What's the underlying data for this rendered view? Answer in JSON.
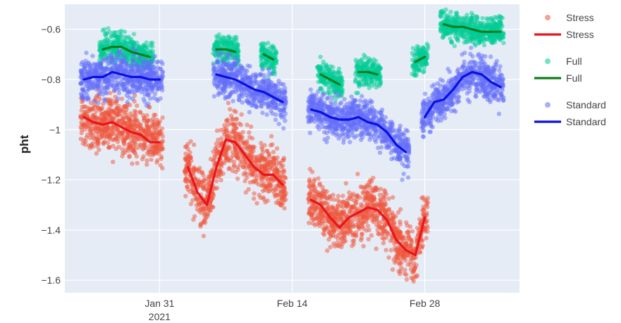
{
  "chart_data": {
    "type": "scatter",
    "title": "",
    "xlabel": "",
    "ylabel": "pht",
    "xlim": [
      "2021-01-21",
      "2021-03-10"
    ],
    "ylim": [
      -1.65,
      -0.5
    ],
    "grid": true,
    "legend_position": "right",
    "plot_background": "#e5ecf6",
    "x_ticks": [
      {
        "value": "2021-01-31",
        "label": "Jan 31",
        "sublabel": "2021"
      },
      {
        "value": "2021-02-14",
        "label": "Feb 14",
        "sublabel": ""
      },
      {
        "value": "2021-02-28",
        "label": "Feb 28",
        "sublabel": ""
      }
    ],
    "y_ticks": [
      {
        "value": -0.6,
        "label": "−0.6"
      },
      {
        "value": -0.8,
        "label": "−0.8"
      },
      {
        "value": -1.0,
        "label": "−1"
      },
      {
        "value": -1.2,
        "label": "−1.2"
      },
      {
        "value": -1.4,
        "label": "−1.4"
      },
      {
        "value": -1.6,
        "label": "−1.6"
      }
    ],
    "series": [
      {
        "name": "Stress",
        "marker_color": "#ef553b",
        "line_color": "#e8141b",
        "scatter_spread": 0.1,
        "trend_segments": [
          [
            [
              "2021-01-23",
              -0.95
            ],
            [
              "2021-01-24",
              -0.97
            ],
            [
              "2021-01-25",
              -0.98
            ],
            [
              "2021-01-26",
              -0.97
            ],
            [
              "2021-01-27",
              -0.99
            ],
            [
              "2021-01-28",
              -1.01
            ],
            [
              "2021-01-29",
              -1.02
            ],
            [
              "2021-01-30",
              -1.05
            ],
            [
              "2021-01-31",
              -1.05
            ]
          ],
          [
            [
              "2021-02-03",
              -1.15
            ],
            [
              "2021-02-04",
              -1.25
            ],
            [
              "2021-02-05",
              -1.3
            ],
            [
              "2021-02-06",
              -1.15
            ],
            [
              "2021-02-07",
              -1.04
            ],
            [
              "2021-02-08",
              -1.05
            ],
            [
              "2021-02-09",
              -1.1
            ],
            [
              "2021-02-10",
              -1.15
            ],
            [
              "2021-02-11",
              -1.18
            ],
            [
              "2021-02-12",
              -1.18
            ],
            [
              "2021-02-13",
              -1.22
            ]
          ],
          [
            [
              "2021-02-16",
              -1.28
            ],
            [
              "2021-02-17",
              -1.3
            ],
            [
              "2021-02-18",
              -1.35
            ],
            [
              "2021-02-19",
              -1.39
            ],
            [
              "2021-02-20",
              -1.35
            ],
            [
              "2021-02-21",
              -1.33
            ],
            [
              "2021-02-22",
              -1.31
            ],
            [
              "2021-02-23",
              -1.32
            ],
            [
              "2021-02-24",
              -1.36
            ],
            [
              "2021-02-25",
              -1.44
            ],
            [
              "2021-02-26",
              -1.48
            ],
            [
              "2021-02-27",
              -1.5
            ],
            [
              "2021-02-28",
              -1.35
            ]
          ]
        ]
      },
      {
        "name": "Full",
        "marker_color": "#00cc96",
        "line_color": "#0e7d19",
        "scatter_spread": 0.05,
        "trend_segments": [
          [
            [
              "2021-01-25",
              -0.68
            ],
            [
              "2021-01-26",
              -0.67
            ],
            [
              "2021-01-27",
              -0.67
            ],
            [
              "2021-01-28",
              -0.69
            ],
            [
              "2021-01-29",
              -0.7
            ],
            [
              "2021-01-30",
              -0.71
            ]
          ],
          [
            [
              "2021-02-06",
              -0.68
            ],
            [
              "2021-02-07",
              -0.68
            ],
            [
              "2021-02-08",
              -0.69
            ]
          ],
          [
            [
              "2021-02-11",
              -0.7
            ],
            [
              "2021-02-12",
              -0.72
            ]
          ],
          [
            [
              "2021-02-17",
              -0.78
            ],
            [
              "2021-02-18",
              -0.8
            ],
            [
              "2021-02-19",
              -0.82
            ]
          ],
          [
            [
              "2021-02-21",
              -0.77
            ],
            [
              "2021-02-22",
              -0.77
            ],
            [
              "2021-02-23",
              -0.78
            ]
          ],
          [
            [
              "2021-02-27",
              -0.73
            ],
            [
              "2021-02-28",
              -0.71
            ]
          ],
          [
            [
              "2021-03-02",
              -0.58
            ],
            [
              "2021-03-03",
              -0.59
            ],
            [
              "2021-03-04",
              -0.59
            ],
            [
              "2021-03-05",
              -0.6
            ],
            [
              "2021-03-06",
              -0.61
            ],
            [
              "2021-03-07",
              -0.61
            ],
            [
              "2021-03-08",
              -0.61
            ]
          ]
        ]
      },
      {
        "name": "Standard",
        "marker_color": "#636efa",
        "line_color": "#0a10de",
        "scatter_spread": 0.07,
        "trend_segments": [
          [
            [
              "2021-01-23",
              -0.8
            ],
            [
              "2021-01-24",
              -0.79
            ],
            [
              "2021-01-25",
              -0.79
            ],
            [
              "2021-01-26",
              -0.77
            ],
            [
              "2021-01-27",
              -0.78
            ],
            [
              "2021-01-28",
              -0.79
            ],
            [
              "2021-01-29",
              -0.79
            ],
            [
              "2021-01-30",
              -0.8
            ],
            [
              "2021-01-31",
              -0.8
            ]
          ],
          [
            [
              "2021-02-06",
              -0.78
            ],
            [
              "2021-02-07",
              -0.79
            ],
            [
              "2021-02-08",
              -0.8
            ],
            [
              "2021-02-09",
              -0.82
            ],
            [
              "2021-02-10",
              -0.84
            ],
            [
              "2021-02-11",
              -0.85
            ],
            [
              "2021-02-12",
              -0.87
            ],
            [
              "2021-02-13",
              -0.89
            ]
          ],
          [
            [
              "2021-02-16",
              -0.92
            ],
            [
              "2021-02-17",
              -0.93
            ],
            [
              "2021-02-18",
              -0.95
            ],
            [
              "2021-02-19",
              -0.96
            ],
            [
              "2021-02-20",
              -0.96
            ],
            [
              "2021-02-21",
              -0.95
            ],
            [
              "2021-02-22",
              -0.97
            ],
            [
              "2021-02-23",
              -0.98
            ],
            [
              "2021-02-24",
              -1.01
            ],
            [
              "2021-02-25",
              -1.06
            ],
            [
              "2021-02-26",
              -1.09
            ]
          ],
          [
            [
              "2021-02-28",
              -0.95
            ],
            [
              "2021-03-01",
              -0.89
            ],
            [
              "2021-03-02",
              -0.88
            ],
            [
              "2021-03-03",
              -0.84
            ],
            [
              "2021-03-04",
              -0.79
            ],
            [
              "2021-03-05",
              -0.77
            ],
            [
              "2021-03-06",
              -0.78
            ],
            [
              "2021-03-07",
              -0.81
            ],
            [
              "2021-03-08",
              -0.83
            ]
          ]
        ]
      }
    ],
    "legend": [
      {
        "label": "Stress",
        "kind": "marker",
        "color": "#ef553b"
      },
      {
        "label": "Stress",
        "kind": "line",
        "color": "#e8141b"
      },
      {
        "label": "Full",
        "kind": "marker",
        "color": "#00cc96"
      },
      {
        "label": "Full",
        "kind": "line",
        "color": "#0e7d19"
      },
      {
        "label": "Standard",
        "kind": "marker",
        "color": "#636efa"
      },
      {
        "label": "Standard",
        "kind": "line",
        "color": "#0a10de"
      }
    ]
  }
}
